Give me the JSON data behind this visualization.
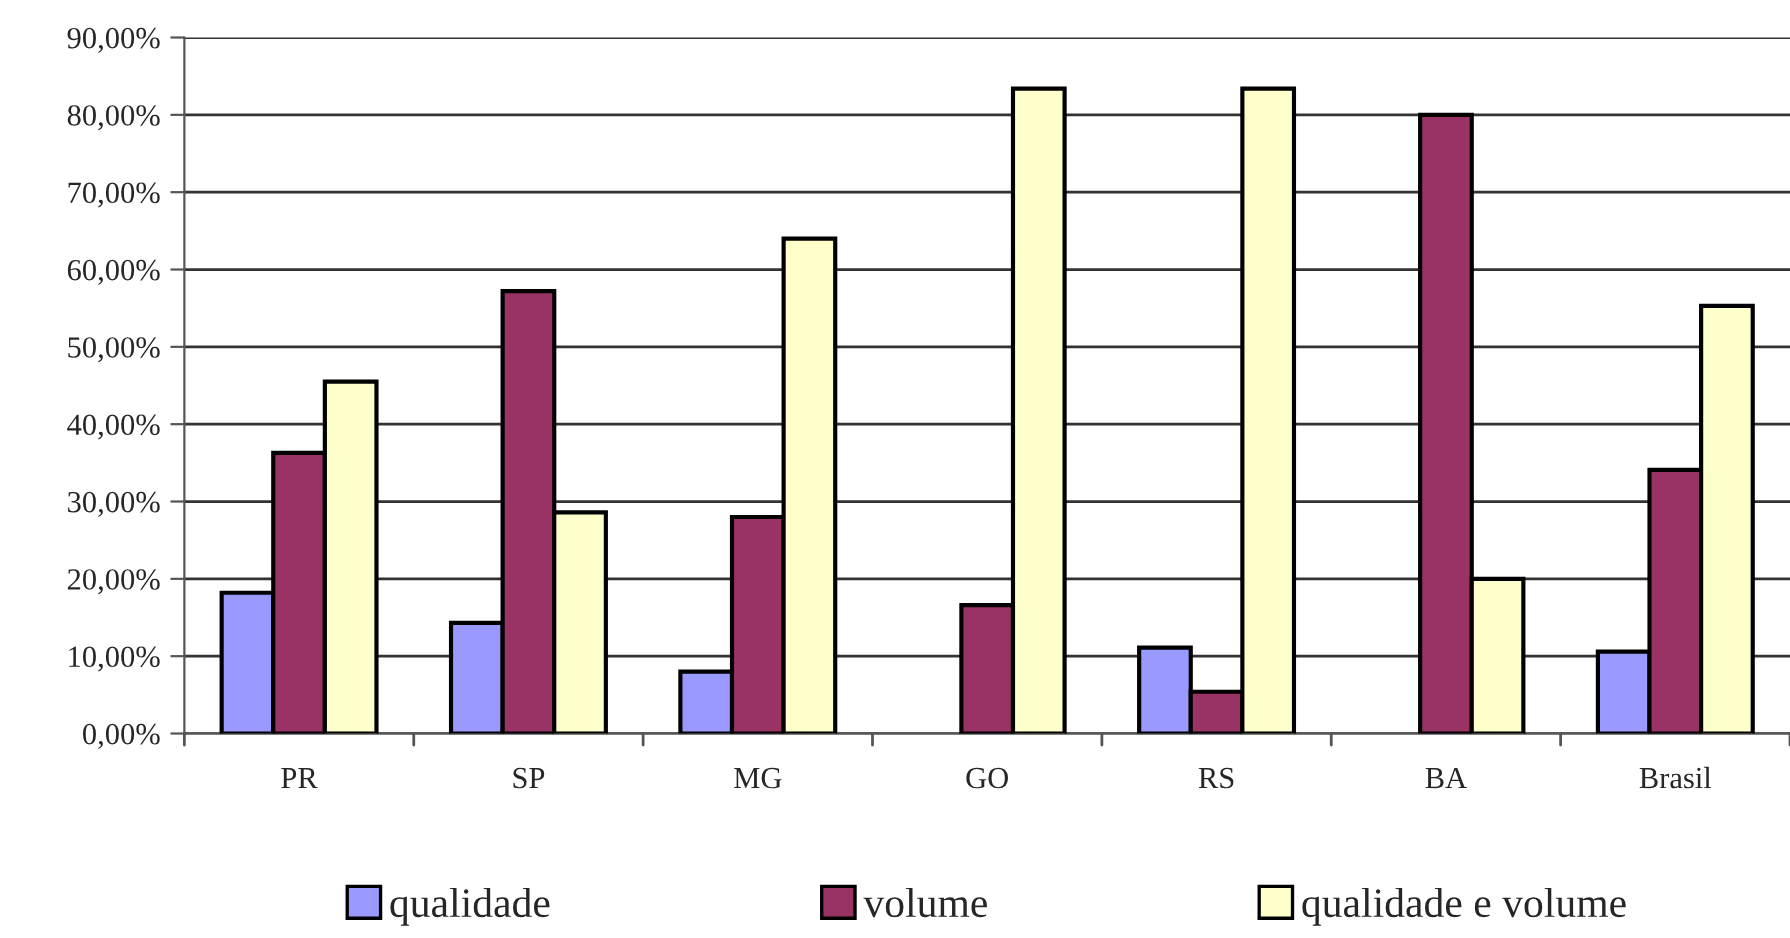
{
  "chart_data": {
    "type": "bar",
    "categories": [
      "PR",
      "SP",
      "MG",
      "GO",
      "RS",
      "BA",
      "Brasil"
    ],
    "series": [
      {
        "name": "qualidade",
        "color": "#9999ff",
        "values": [
          18.2,
          14.3,
          8.0,
          null,
          11.1,
          null,
          10.6
        ]
      },
      {
        "name": "volume",
        "color": "#993366",
        "values": [
          36.3,
          57.2,
          28.0,
          16.6,
          5.4,
          80.0,
          34.1
        ]
      },
      {
        "name": "qualidade e volume",
        "color": "#ffffcc",
        "values": [
          45.5,
          28.6,
          64.0,
          83.4,
          83.4,
          20.0,
          55.3
        ]
      }
    ],
    "ylim": [
      0,
      90
    ],
    "yticks": [
      {
        "value": 0,
        "label": "0,00%"
      },
      {
        "value": 10,
        "label": "10,00%"
      },
      {
        "value": 20,
        "label": "20,00%"
      },
      {
        "value": 30,
        "label": "30,00%"
      },
      {
        "value": 40,
        "label": "40,00%"
      },
      {
        "value": 50,
        "label": "50,00%"
      },
      {
        "value": 60,
        "label": "60,00%"
      },
      {
        "value": 70,
        "label": "70,00%"
      },
      {
        "value": 80,
        "label": "80,00%"
      },
      {
        "value": 90,
        "label": "90,00%"
      }
    ],
    "grid": "y",
    "legend": "bottom"
  }
}
